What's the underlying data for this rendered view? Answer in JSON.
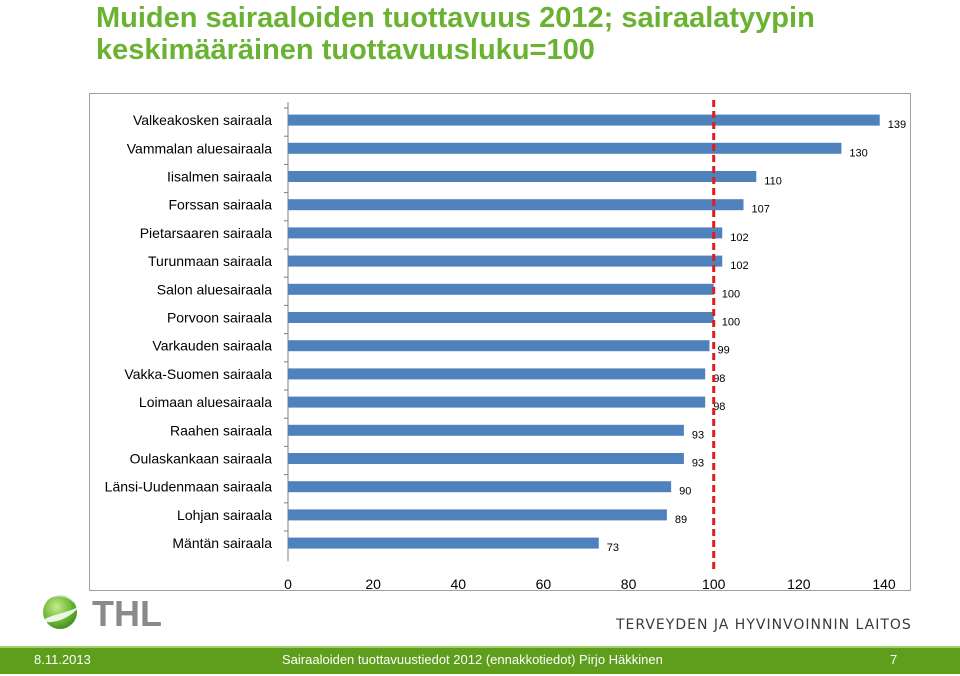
{
  "title": {
    "line1": "Muiden sairaaloiden tuottavuus 2012; sairaalatyypin",
    "line2": "keskimääräinen tuottavuusluku=100"
  },
  "chart_data": {
    "type": "bar",
    "orientation": "horizontal",
    "categories": [
      "Valkeakosken sairaala",
      "Vammalan aluesairaala",
      "Iisalmen sairaala",
      "Forssan sairaala",
      "Pietarsaaren sairaala",
      "Turunmaan sairaala",
      "Salon aluesairaala",
      "Porvoon sairaala",
      "Varkauden sairaala",
      "Vakka-Suomen sairaala",
      "Loimaan aluesairaala",
      "Raahen sairaala",
      "Oulaskankaan sairaala",
      "Länsi-Uudenmaan sairaala",
      "Lohjan sairaala",
      "Mäntän sairaala"
    ],
    "values": [
      139,
      130,
      110,
      107,
      102,
      102,
      100,
      100,
      99,
      98,
      98,
      93,
      93,
      90,
      89,
      73
    ],
    "value_labels": [
      "139",
      "130",
      "110",
      "107",
      "102",
      "102",
      "100",
      "100",
      "99",
      "98",
      "98",
      "93",
      "93",
      "90",
      "89",
      "73"
    ],
    "xlim": [
      0,
      140
    ],
    "xticks": [
      "0",
      "20",
      "40",
      "60",
      "80",
      "100",
      "120",
      "140"
    ],
    "reference_line": 100,
    "bar_color": "#4f81bd",
    "reference_color": "#e31a1c",
    "grid": false
  },
  "brand": {
    "logo_text": "THL",
    "org_name": "TERVEYDEN JA HYVINVOINNIN LAITOS"
  },
  "footer": {
    "date": "8.11.2013",
    "center": "Sairaaloiden tuottavuustiedot 2012 (ennakkotiedot)   Pirjo Häkkinen",
    "page": "7",
    "color": "#5e9e1c"
  }
}
